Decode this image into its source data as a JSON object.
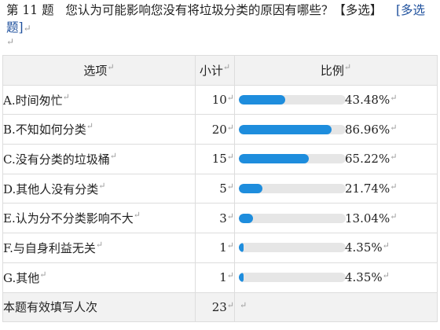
{
  "question": {
    "number": "第 11 题",
    "text": "您认为可能影响您没有将垃圾分类的原因有哪些？【多选】",
    "tag_part1": "[多选",
    "tag_part2": "题]",
    "mark": "↵"
  },
  "table": {
    "headers": {
      "option": "选项",
      "count": "小计",
      "ratio": "比例"
    },
    "rows": [
      {
        "label": "A.时间匆忙",
        "count": "10",
        "percent": "43.48%",
        "fraction": 0.4348
      },
      {
        "label": "B.不知如何分类",
        "count": "20",
        "percent": "86.96%",
        "fraction": 0.8696
      },
      {
        "label": "C.没有分类的垃圾桶",
        "count": "15",
        "percent": "65.22%",
        "fraction": 0.6522
      },
      {
        "label": "D.其他人没有分类",
        "count": "5",
        "percent": "21.74%",
        "fraction": 0.2174
      },
      {
        "label": "E.认为分不分类影响不大",
        "count": "3",
        "percent": "13.04%",
        "fraction": 0.1304
      },
      {
        "label": "F.与自身利益无关",
        "count": "1",
        "percent": "4.35%",
        "fraction": 0.0435
      },
      {
        "label": "G.其他",
        "count": "1",
        "percent": "4.35%",
        "fraction": 0.0435
      }
    ],
    "total": {
      "label": "本题有效填写人次",
      "count": "23"
    }
  },
  "colors": {
    "bar_fill": "#1e8ddd",
    "bar_track": "#e6e6e6",
    "header_bg": "#f2f2f2",
    "tag_blue": "#1d4f9c"
  }
}
